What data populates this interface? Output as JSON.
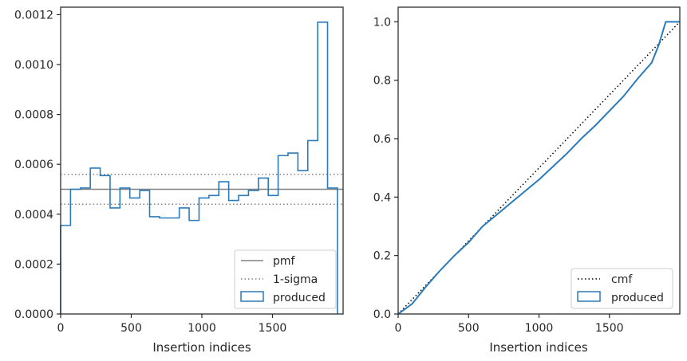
{
  "colors": {
    "series": "#2b7bba",
    "pmf_line": "#808080",
    "sigma_line": "#808080",
    "cmf_line": "#000000",
    "axes": "#262626",
    "legend_border": "#cccccc"
  },
  "chart_data": [
    {
      "type": "histogram-step",
      "xlabel": "Insertion indices",
      "ylabel": "",
      "xlim": [
        0,
        2000
      ],
      "ylim": [
        0,
        0.00123
      ],
      "xticks": [
        0,
        500,
        1000,
        1500
      ],
      "xtick_labels": [
        "0",
        "500",
        "1000",
        "1500"
      ],
      "yticks": [
        0,
        0.0002,
        0.0004,
        0.0006,
        0.0008,
        0.001,
        0.0012
      ],
      "ytick_labels": [
        "0.0000",
        "0.0002",
        "0.0004",
        "0.0006",
        "0.0008",
        "0.0010",
        "0.0012"
      ],
      "legend_position": "lower right",
      "bin_edges": [
        0,
        70,
        140,
        210,
        280,
        350,
        420,
        490,
        560,
        630,
        700,
        770,
        840,
        910,
        980,
        1050,
        1120,
        1190,
        1260,
        1330,
        1400,
        1470,
        1540,
        1610,
        1680,
        1750,
        1820,
        1890,
        1960
      ],
      "series": [
        {
          "name": "produced",
          "values": [
            0.000355,
            0.0005,
            0.000505,
            0.000585,
            0.000555,
            0.000425,
            0.000505,
            0.000465,
            0.000495,
            0.00039,
            0.000385,
            0.000385,
            0.000425,
            0.000375,
            0.000465,
            0.000475,
            0.00053,
            0.000455,
            0.000475,
            0.000495,
            0.000545,
            0.000475,
            0.000635,
            0.000645,
            0.000575,
            0.000695,
            0.00117,
            0.000505
          ]
        }
      ],
      "reference_lines": [
        {
          "name": "pmf",
          "y": 0.0005,
          "style": "solid"
        },
        {
          "name": "1-sigma",
          "y": [
            0.00044,
            0.00056
          ],
          "style": "dotted"
        }
      ]
    },
    {
      "type": "line",
      "xlabel": "Insertion indices",
      "ylabel": "",
      "xlim": [
        0,
        2000
      ],
      "ylim": [
        0,
        1.05
      ],
      "xticks": [
        0,
        500,
        1000,
        1500
      ],
      "xtick_labels": [
        "0",
        "500",
        "1000",
        "1500"
      ],
      "yticks": [
        0,
        0.2,
        0.4,
        0.6,
        0.8,
        1.0
      ],
      "ytick_labels": [
        "0.0",
        "0.2",
        "0.4",
        "0.6",
        "0.8",
        "1.0"
      ],
      "legend_position": "lower right",
      "series": [
        {
          "name": "cmf",
          "style": "dotted",
          "x": [
            0,
            2000
          ],
          "y": [
            0,
            1.0
          ]
        },
        {
          "name": "produced",
          "style": "solid",
          "x": [
            0,
            100,
            200,
            300,
            400,
            500,
            600,
            700,
            800,
            900,
            1000,
            1100,
            1200,
            1300,
            1400,
            1500,
            1600,
            1700,
            1800,
            1850,
            1900,
            1960,
            2000
          ],
          "y": [
            0,
            0.035,
            0.095,
            0.15,
            0.2,
            0.245,
            0.3,
            0.34,
            0.38,
            0.42,
            0.46,
            0.505,
            0.55,
            0.6,
            0.645,
            0.695,
            0.745,
            0.805,
            0.86,
            0.92,
            1.0,
            1.0,
            1.0
          ]
        }
      ]
    }
  ]
}
